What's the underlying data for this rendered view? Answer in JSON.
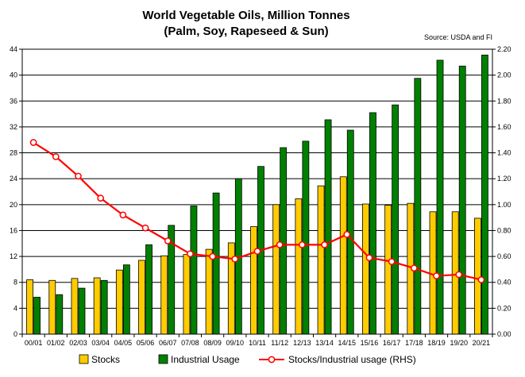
{
  "chart_data": {
    "type": "bar",
    "title": [
      "World Vegetable Oils, Million Tonnes",
      "(Palm, Soy, Rapeseed & Sun)"
    ],
    "source": "Source: USDA and FI",
    "categories": [
      "00/01",
      "01/02",
      "02/03",
      "03/04",
      "04/05",
      "05/06",
      "06/07",
      "07/08",
      "08/09",
      "09/10",
      "10/11",
      "11/12",
      "12/13",
      "13/14",
      "14/15",
      "15/16",
      "16/17",
      "17/18",
      "18/19",
      "19/20",
      "20/21"
    ],
    "series": [
      {
        "name": "Stocks",
        "type": "bar",
        "axis": "left",
        "color": "#FFCC00",
        "values": [
          8.4,
          8.3,
          8.6,
          8.7,
          9.9,
          11.4,
          12.1,
          12.3,
          13.1,
          14.1,
          16.6,
          20.0,
          20.9,
          22.9,
          24.3,
          20.1,
          19.9,
          20.2,
          18.9,
          18.9,
          17.9
        ]
      },
      {
        "name": "Industrial Usage",
        "type": "bar",
        "axis": "left",
        "color": "#008000",
        "values": [
          5.7,
          6.1,
          7.1,
          8.3,
          10.7,
          13.8,
          16.8,
          19.8,
          21.8,
          24.0,
          25.9,
          28.8,
          29.8,
          33.1,
          31.5,
          34.2,
          35.4,
          39.5,
          42.3,
          41.4,
          43.1
        ]
      },
      {
        "name": "Stocks/Industrial usage (RHS)",
        "type": "line",
        "axis": "right",
        "color": "#FF0000",
        "values": [
          1.48,
          1.37,
          1.22,
          1.05,
          0.92,
          0.82,
          0.72,
          0.62,
          0.6,
          0.58,
          0.64,
          0.69,
          0.69,
          0.69,
          0.77,
          0.59,
          0.56,
          0.51,
          0.45,
          0.46,
          0.42
        ]
      }
    ],
    "y_left": {
      "min": 0,
      "max": 44,
      "ticks": [
        0,
        4,
        8,
        12,
        16,
        20,
        24,
        28,
        32,
        36,
        40,
        44
      ],
      "labels": [
        "0",
        "4",
        "8",
        "12",
        "16",
        "20",
        "24",
        "28",
        "32",
        "36",
        "40",
        "44"
      ]
    },
    "y_right": {
      "min": 0,
      "max": 2.2,
      "ticks": [
        0,
        0.2,
        0.4,
        0.6,
        0.8,
        1.0,
        1.2,
        1.4,
        1.6,
        1.8,
        2.0,
        2.2
      ],
      "labels": [
        "0.00",
        "0.20",
        "0.40",
        "0.60",
        "0.80",
        "1.00",
        "1.20",
        "1.40",
        "1.60",
        "1.80",
        "2.00",
        "2.20"
      ]
    },
    "grid": true,
    "legend_position": "bottom"
  }
}
